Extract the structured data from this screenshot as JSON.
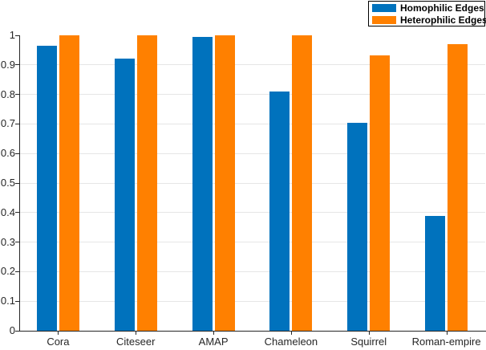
{
  "chart_data": {
    "type": "bar",
    "title": "",
    "xlabel": "",
    "ylabel": "",
    "categories": [
      "Cora",
      "Citeseer",
      "AMAP",
      "Chameleon",
      "Squirrel",
      "Roman-empire"
    ],
    "series": [
      {
        "name": "Homophilic Edges",
        "color": "#0072BD",
        "values": [
          0.965,
          0.92,
          0.995,
          0.81,
          0.703,
          0.388
        ]
      },
      {
        "name": "Heterophilic Edges",
        "color": "#FF8000",
        "values": [
          1.0,
          1.0,
          1.0,
          1.0,
          0.932,
          0.97
        ]
      }
    ],
    "ylim": [
      0,
      1
    ],
    "ytick_step": 0.1,
    "ytick_labels": [
      "0",
      "0.1",
      "0.2",
      "0.3",
      "0.4",
      "0.5",
      "0.6",
      "0.7",
      "0.8",
      "0.9",
      "1"
    ],
    "grid": "y",
    "grid_color": "#e6e6e6",
    "axis_color": "#262626",
    "legend_position": "top-right"
  }
}
